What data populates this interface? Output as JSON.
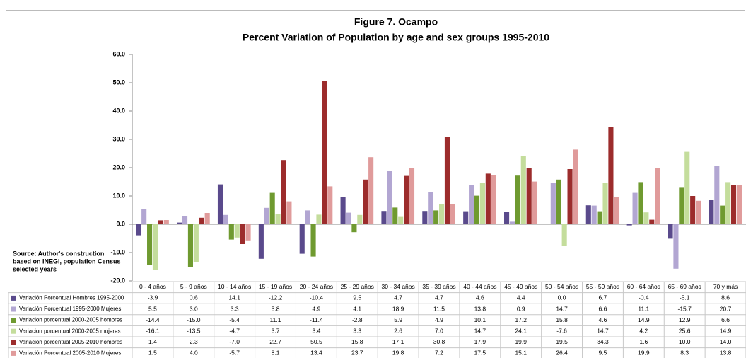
{
  "chart_data": {
    "type": "bar",
    "title": "Figure 7. Ocampo",
    "subtitle": "Percent Variation of Population by age and sex groups 1995-2010",
    "source": [
      "Source: Author's construction",
      " based on INEGI, population Census",
      "selected years"
    ],
    "categories": [
      "0 - 4 años",
      "5 - 9 años",
      "10 - 14 años",
      "15 - 19 años",
      "20 - 24 años",
      "25 - 29 años",
      "30 - 34 años",
      "35 - 39 años",
      "40 - 44 años",
      "45 - 49 años",
      "50 - 54 años",
      "55 - 59 años",
      "60 - 64 años",
      "65 - 69 años",
      "70 y más"
    ],
    "series": [
      {
        "name": "Variación Porcentual Hombres 1995-2000",
        "color": "#5a4a8c",
        "values": [
          -3.9,
          0.6,
          14.1,
          -12.2,
          -10.4,
          9.5,
          4.7,
          4.7,
          4.6,
          4.4,
          0.0,
          6.7,
          -0.4,
          -5.1,
          8.6
        ],
        "value_labels": [
          "-3.9",
          "0.6",
          "14.1",
          "-12.2",
          "-10.4",
          "9.5",
          "4.7",
          "4.7",
          "4.6",
          "4.4",
          "0.0",
          "6.7",
          "-0.4",
          "-5.1",
          "8.6"
        ]
      },
      {
        "name": "Variación Porcentual 1995-2000 Mujeres",
        "color": "#b2a6d2",
        "values": [
          5.5,
          3.0,
          3.3,
          5.8,
          4.9,
          4.1,
          18.9,
          11.5,
          13.8,
          0.9,
          14.7,
          6.6,
          11.1,
          -15.7,
          20.7
        ],
        "value_labels": [
          "5.5",
          "3.0",
          "3.3",
          "5.8",
          "4.9",
          "4.1",
          "18.9",
          "11.5",
          "13.8",
          "0.9",
          "14.7",
          "6.6",
          "11.1",
          "-15.7",
          "20.7"
        ]
      },
      {
        "name": "Variacion porcentual 2000-2005 hombres",
        "color": "#6f9a30",
        "values": [
          -14.4,
          -15.0,
          -5.4,
          11.1,
          -11.4,
          -2.8,
          5.9,
          4.9,
          10.1,
          17.2,
          15.8,
          4.6,
          14.9,
          12.9,
          6.6
        ],
        "value_labels": [
          "-14.4",
          "-15.0",
          "-5.4",
          "11.1",
          "-11.4",
          "-2.8",
          "5.9",
          "4.9",
          "10.1",
          "17.2",
          "15.8",
          "4.6",
          "14.9",
          "12.9",
          "6.6"
        ]
      },
      {
        "name": "Variacion porcentual 2000-2005 mujeres",
        "color": "#c4dd9c",
        "values": [
          -16.1,
          -13.5,
          -4.7,
          3.7,
          3.4,
          3.3,
          2.6,
          7.0,
          14.7,
          24.1,
          -7.6,
          14.7,
          4.2,
          25.6,
          14.9
        ],
        "value_labels": [
          "-16.1",
          "-13.5",
          "-4.7",
          "3.7",
          "3.4",
          "3.3",
          "2.6",
          "7.0",
          "14.7",
          "24.1",
          "-7.6",
          "14.7",
          "4.2",
          "25.6",
          "14.9"
        ]
      },
      {
        "name": "Variación porcentual 2005-2010 hombres",
        "color": "#9c2c2c",
        "values": [
          1.4,
          2.3,
          -7.0,
          22.7,
          50.5,
          15.8,
          17.1,
          30.8,
          17.9,
          19.9,
          19.5,
          34.3,
          1.6,
          10.0,
          14.0
        ],
        "value_labels": [
          "1.4",
          "2.3",
          "-7.0",
          "22.7",
          "50.5",
          "15.8",
          "17.1",
          "30.8",
          "17.9",
          "19.9",
          "19.5",
          "34.3",
          "1.6",
          "10.0",
          "14.0"
        ]
      },
      {
        "name": "Variación Porcentual 2005-2010 Mujeres",
        "color": "#e09b9b",
        "values": [
          1.5,
          4.0,
          -5.7,
          8.1,
          13.4,
          23.7,
          19.8,
          7.2,
          17.5,
          15.1,
          26.4,
          9.5,
          19.9,
          8.3,
          13.8
        ],
        "value_labels": [
          "1.5",
          "4.0",
          "-5.7",
          "8.1",
          "13.4",
          "23.7",
          "19.8",
          "7.2",
          "17.5",
          "15.1",
          "26.4",
          "9.5",
          "19.9",
          "8.3",
          "13.8"
        ]
      }
    ],
    "ylim": [
      -20,
      60
    ],
    "yticks": [
      {
        "value": -20,
        "label": "-20.0"
      },
      {
        "value": -10,
        "label": "-10.0"
      },
      {
        "value": 0,
        "label": "0.0"
      },
      {
        "value": 10,
        "label": "10.0"
      },
      {
        "value": 20,
        "label": "20.0"
      },
      {
        "value": 30,
        "label": "30.0"
      },
      {
        "value": 40,
        "label": "40.0"
      },
      {
        "value": 50,
        "label": "50.0"
      },
      {
        "value": 60,
        "label": "60.0"
      }
    ],
    "grid": false
  }
}
